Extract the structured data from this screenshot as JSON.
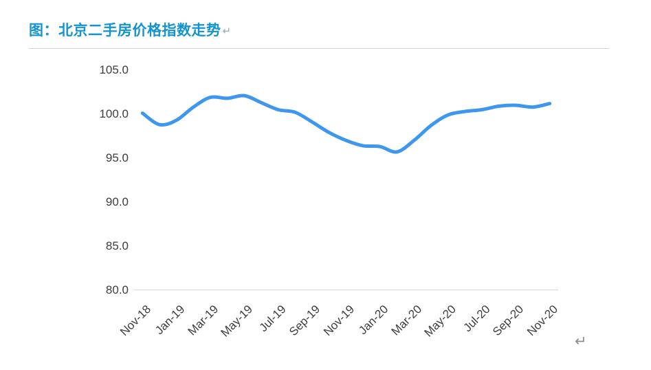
{
  "page": {
    "title": "图：北京二手房价格指数走势",
    "title_paragraph_mark": "↵",
    "end_paragraph_mark": "↵",
    "title_color": "#1294d3"
  },
  "chart_data": {
    "type": "line",
    "title": "图：北京二手房价格指数走势",
    "x": [
      "Nov-18",
      "Dec-18",
      "Jan-19",
      "Feb-19",
      "Mar-19",
      "Apr-19",
      "May-19",
      "Jun-19",
      "Jul-19",
      "Aug-19",
      "Sep-19",
      "Oct-19",
      "Nov-19",
      "Dec-19",
      "Jan-20",
      "Feb-20",
      "Mar-20",
      "Apr-20",
      "May-20",
      "Jun-20",
      "Jul-20",
      "Aug-20",
      "Sep-20",
      "Oct-20",
      "Nov-20"
    ],
    "series": [
      {
        "name": "北京二手房价格指数",
        "values": [
          100.1,
          98.8,
          99.3,
          100.8,
          101.9,
          101.8,
          102.1,
          101.3,
          100.5,
          100.2,
          99.1,
          97.9,
          97.0,
          96.4,
          96.3,
          95.7,
          97.0,
          98.7,
          99.9,
          100.3,
          100.5,
          100.9,
          101.0,
          100.8,
          101.2
        ]
      }
    ],
    "xlabel": "",
    "ylabel": "",
    "ylim": [
      80,
      105
    ],
    "y_ticks": [
      105,
      100,
      95,
      90,
      85,
      80
    ],
    "y_tick_format_decimals": 1,
    "x_tick_every": 2,
    "grid": false,
    "legend": "none",
    "smooth": true,
    "line_color": "#3e97ee",
    "axis_line_color": "#dcdcdc",
    "tick_text_color": "#3d3d3d"
  }
}
